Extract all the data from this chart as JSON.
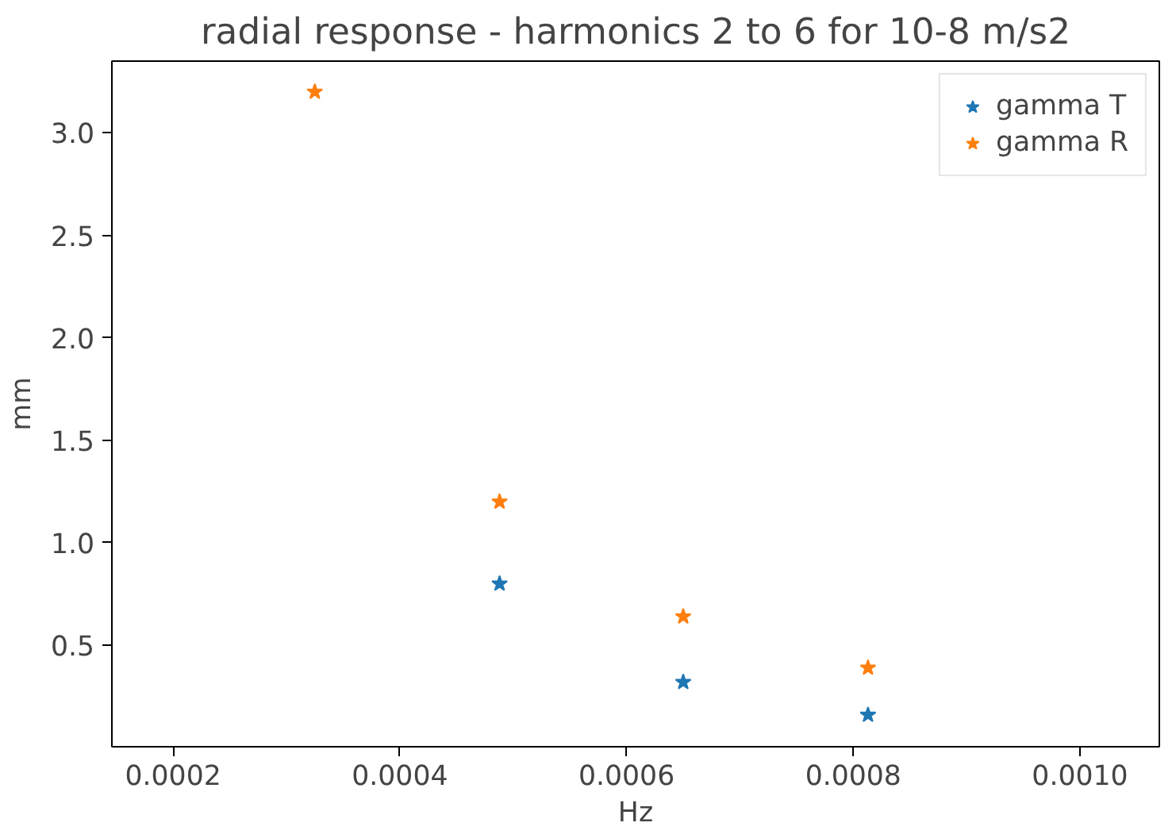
{
  "chart_data": {
    "type": "scatter",
    "title": "radial response - harmonics 2 to 6 for 10-8 m/s2",
    "xlabel": "Hz",
    "ylabel": "mm",
    "series": [
      {
        "name": "gamma T",
        "color": "#1f77b4",
        "x": [
          0.000488,
          0.00065,
          0.000813
        ],
        "values": [
          0.8,
          0.32,
          0.16
        ]
      },
      {
        "name": "gamma R",
        "color": "#ff7f0e",
        "x": [
          0.000325,
          0.000488,
          0.00065,
          0.000813
        ],
        "values": [
          3.2,
          1.2,
          0.64,
          0.39
        ]
      }
    ],
    "xlim": [
      0.000146,
      0.00107
    ],
    "ylim": [
      0.005,
      3.35
    ],
    "xticks": [
      {
        "value": 0.0002,
        "label": "0.0002"
      },
      {
        "value": 0.0004,
        "label": "0.0004"
      },
      {
        "value": 0.0006,
        "label": "0.0006"
      },
      {
        "value": 0.0008,
        "label": "0.0008"
      },
      {
        "value": 0.001,
        "label": "0.0010"
      }
    ],
    "yticks": [
      {
        "value": 0.5,
        "label": "0.5"
      },
      {
        "value": 1.0,
        "label": "1.0"
      },
      {
        "value": 1.5,
        "label": "1.5"
      },
      {
        "value": 2.0,
        "label": "2.0"
      },
      {
        "value": 2.5,
        "label": "2.5"
      },
      {
        "value": 3.0,
        "label": "3.0"
      }
    ],
    "grid": false,
    "legend": "top right",
    "marker": "star"
  }
}
